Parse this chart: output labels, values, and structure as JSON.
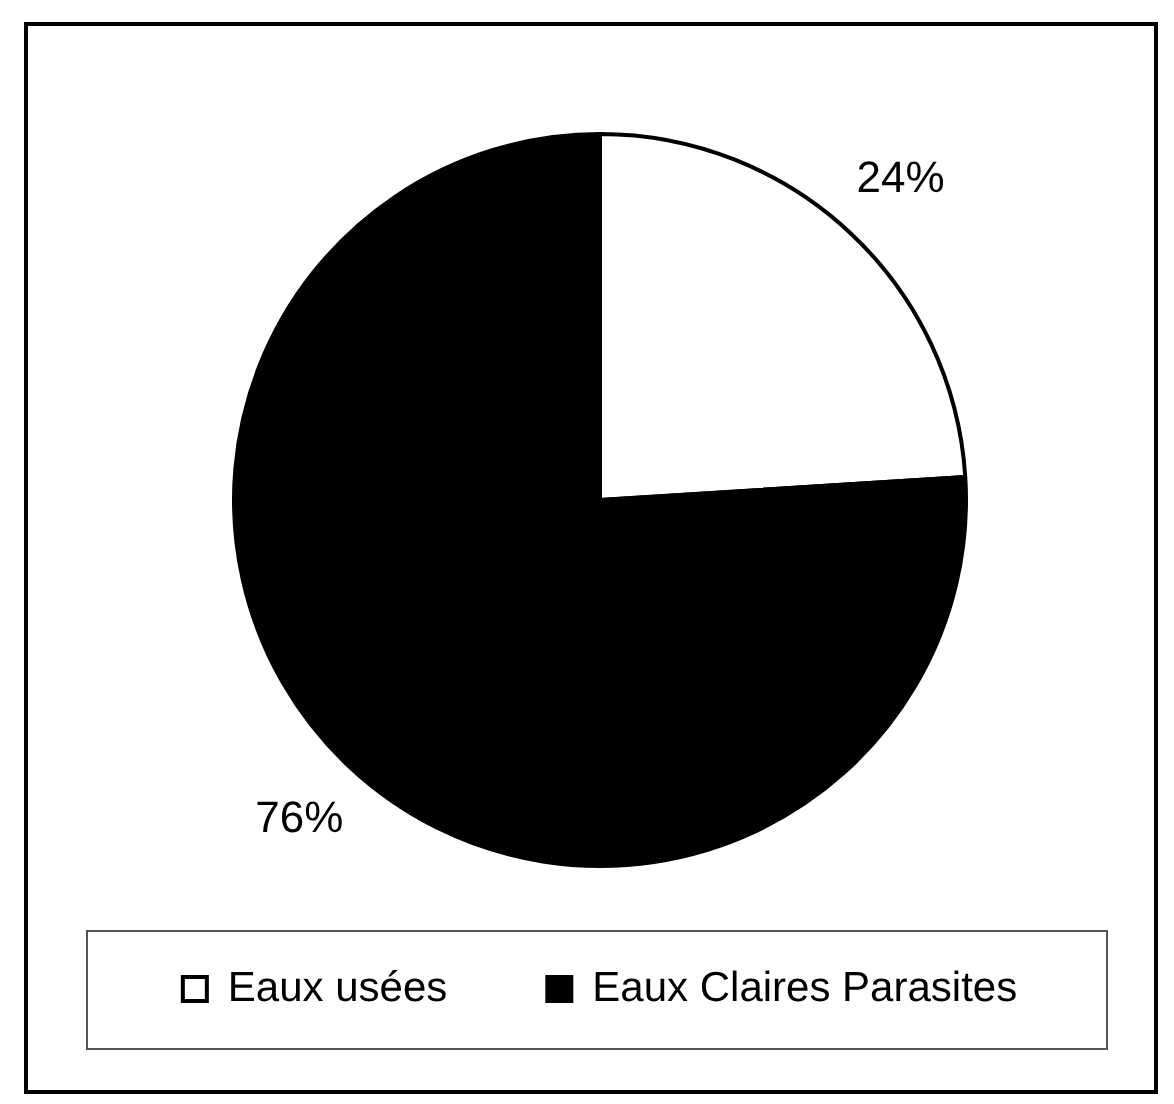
{
  "chart_data": {
    "type": "pie",
    "categories": [
      "Eaux usées",
      "Eaux Claires Parasites"
    ],
    "values": [
      24,
      76
    ],
    "colors": [
      "#ffffff",
      "#000000"
    ],
    "value_labels": [
      "24%",
      "76%"
    ],
    "legend": "bottom"
  }
}
